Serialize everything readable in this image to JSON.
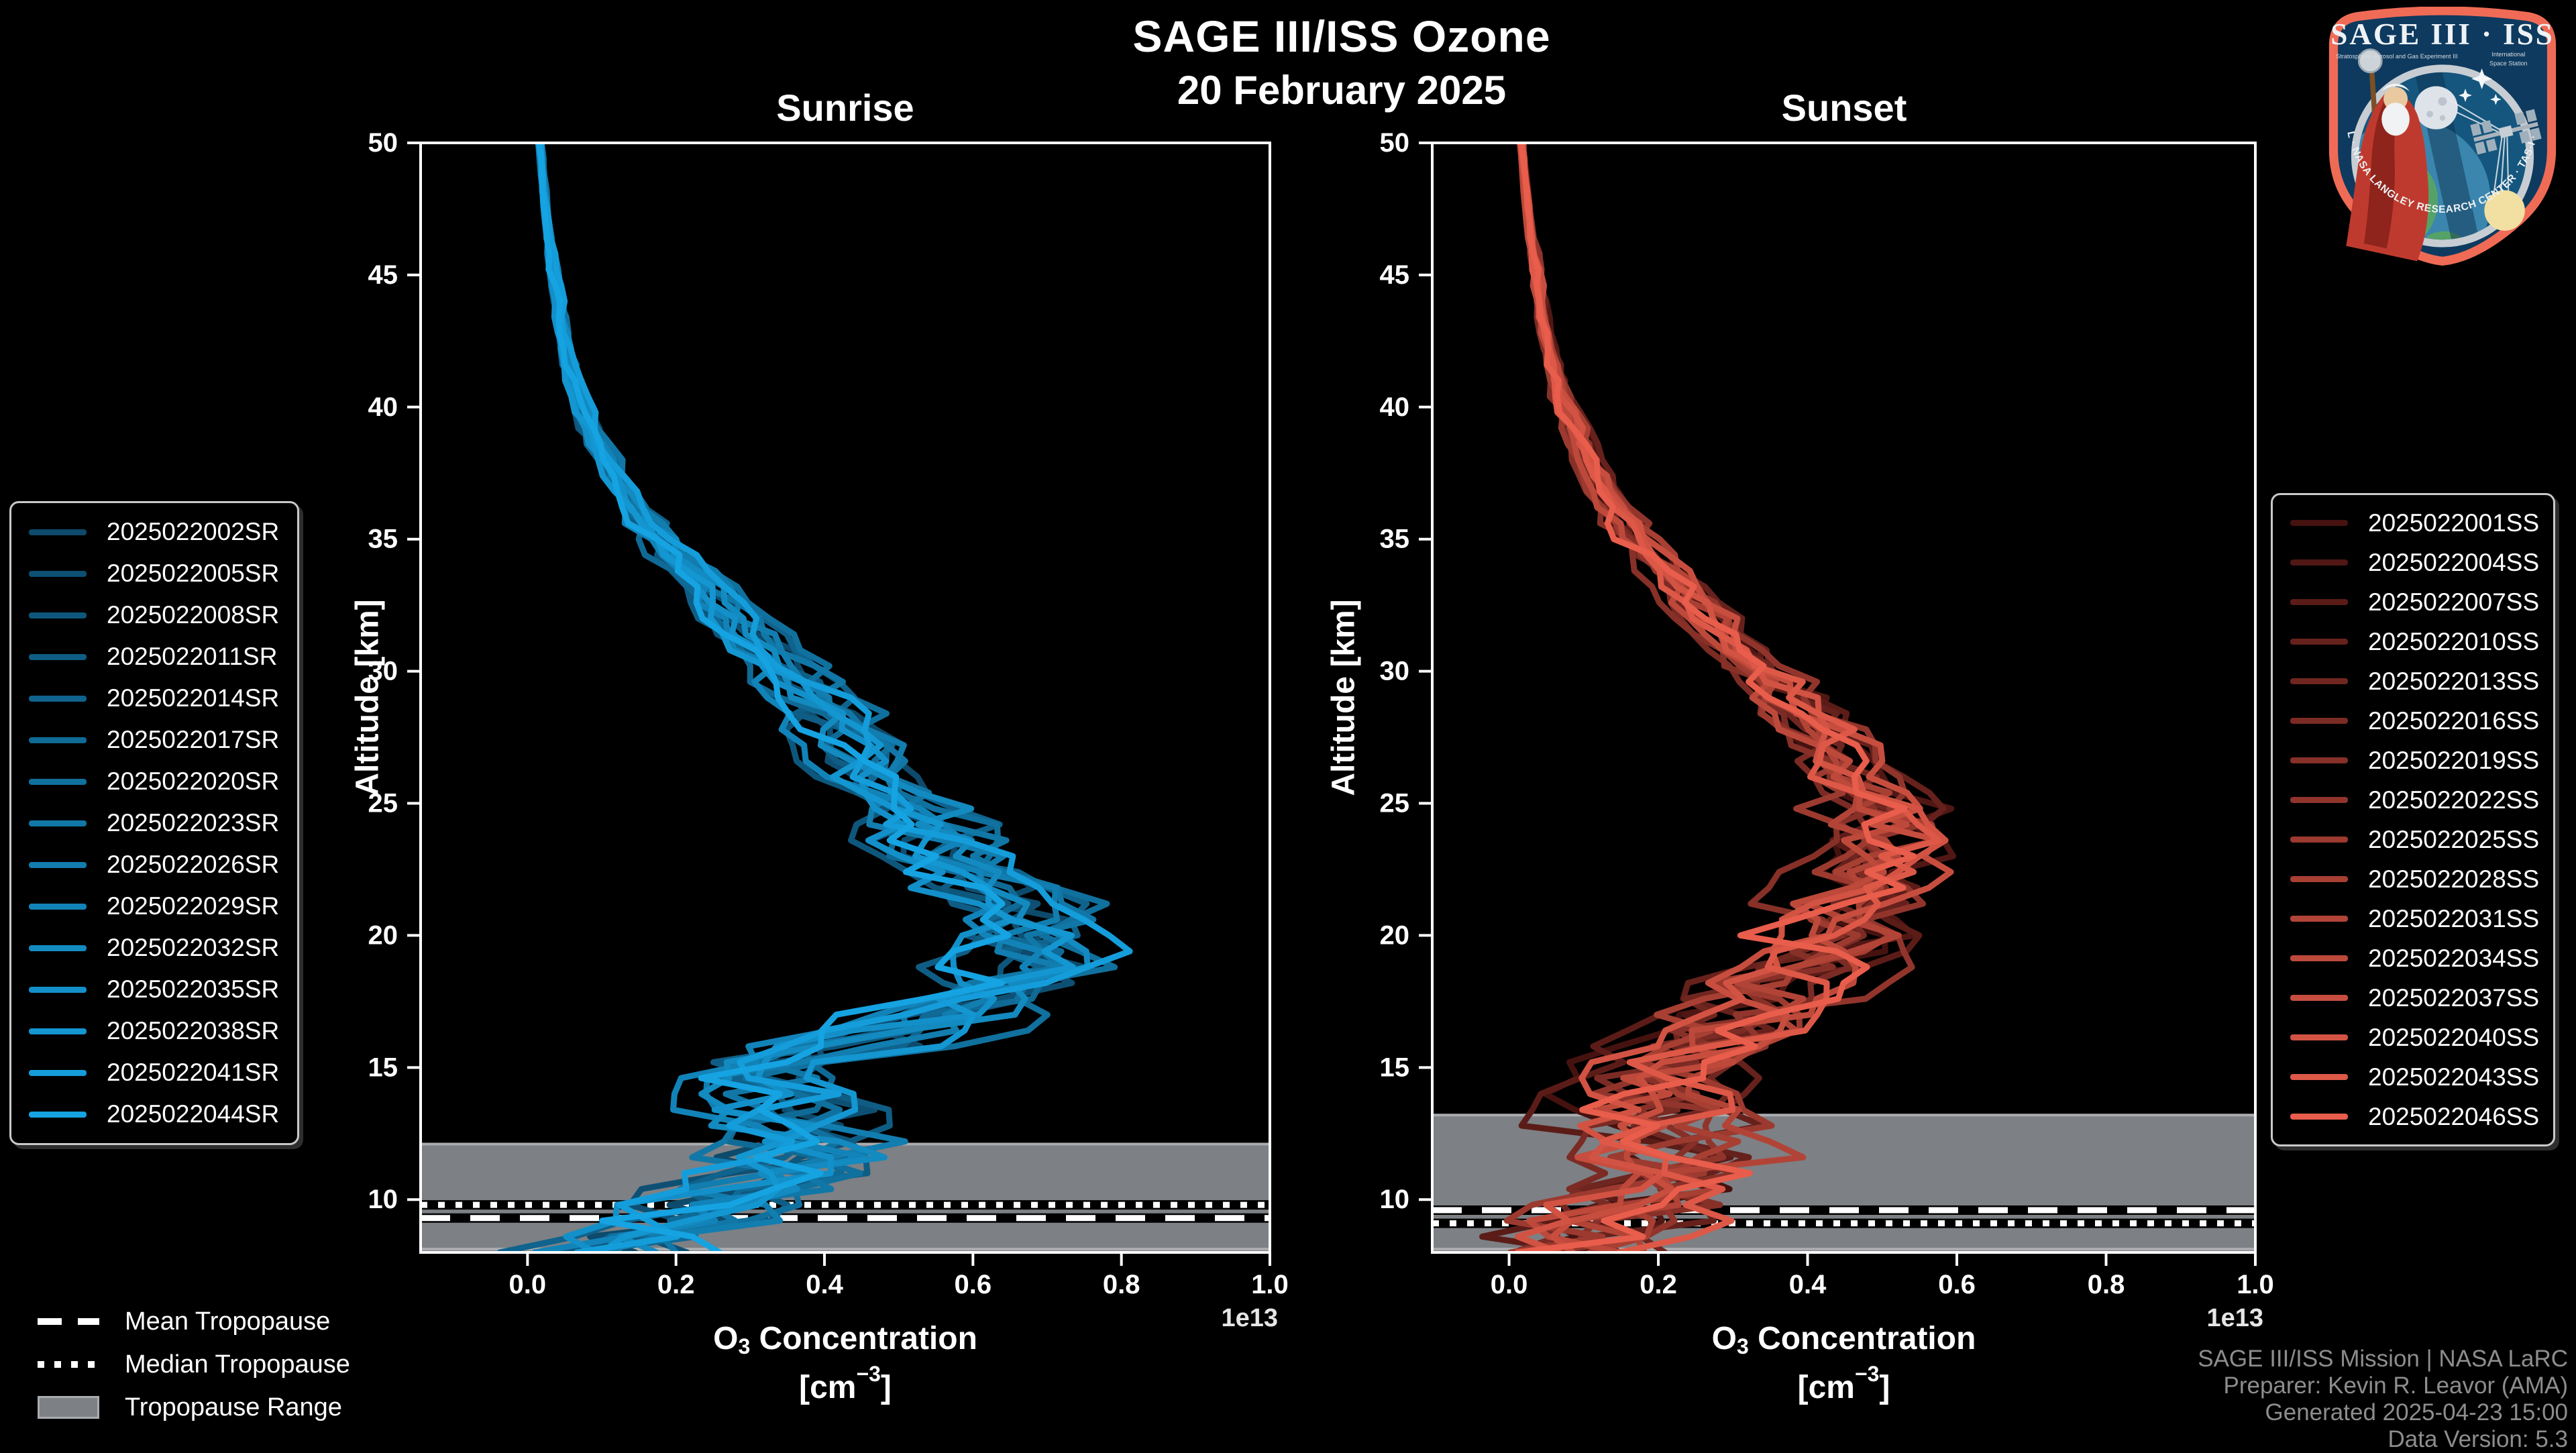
{
  "header": {
    "title": "SAGE III/ISS Ozone",
    "date": "20 February 2025"
  },
  "chart_data": {
    "type": "line",
    "title": "SAGE III/ISS Ozone",
    "subtitle_date": "20 February 2025",
    "x_axis": {
      "label_parts": {
        "pre": "O",
        "sub": "3",
        "rest": " Concentration",
        "unit_pre": "[cm",
        "unit_sup": "−3",
        "unit_post": "]"
      },
      "multiplier": "1e13",
      "tick_labels": [
        "0.0",
        "0.2",
        "0.4",
        "0.6",
        "0.8",
        "1.0"
      ]
    },
    "y_axis": {
      "label": "Altitude [km]",
      "ticks": [
        10,
        15,
        20,
        25,
        30,
        35,
        40,
        45,
        50
      ],
      "range": [
        8,
        50
      ]
    },
    "panels": [
      {
        "id": "sunrise",
        "title": "Sunrise",
        "event_type": "SR",
        "color_start": "#0d4a6b",
        "color_end": "#15a3e2",
        "x_range": [
          -0.144,
          1.0
        ],
        "series": [
          "2025022002SR",
          "2025022005SR",
          "2025022008SR",
          "2025022011SR",
          "2025022014SR",
          "2025022017SR",
          "2025022020SR",
          "2025022023SR",
          "2025022026SR",
          "2025022029SR",
          "2025022032SR",
          "2025022035SR",
          "2025022038SR",
          "2025022041SR",
          "2025022044SR"
        ],
        "tropopause": {
          "mean_km": 9.3,
          "median_km": 9.8,
          "range_top_km": 12.1,
          "range_bottom_km": 8.0
        },
        "mean_profile": {
          "altitude_km": [
            8,
            9,
            10,
            11,
            12,
            13,
            14,
            15,
            16,
            17,
            18,
            19,
            20,
            21,
            22,
            23,
            24,
            25,
            26,
            27,
            28,
            29,
            30,
            31,
            32,
            33,
            34,
            35,
            36,
            37,
            38,
            39,
            40,
            41,
            42,
            43,
            44,
            45,
            46,
            47,
            48,
            49,
            50
          ],
          "o3_concentration_1e13": [
            0.12,
            0.17,
            0.26,
            0.34,
            0.41,
            0.38,
            0.33,
            0.35,
            0.45,
            0.55,
            0.63,
            0.68,
            0.68,
            0.66,
            0.62,
            0.57,
            0.53,
            0.5,
            0.47,
            0.45,
            0.42,
            0.39,
            0.36,
            0.32,
            0.28,
            0.25,
            0.21,
            0.18,
            0.15,
            0.13,
            0.11,
            0.09,
            0.075,
            0.065,
            0.055,
            0.048,
            0.042,
            0.036,
            0.031,
            0.027,
            0.023,
            0.02,
            0.017
          ]
        }
      },
      {
        "id": "sunset",
        "title": "Sunset",
        "event_type": "SS",
        "color_start": "#451210",
        "color_end": "#e85d4b",
        "x_range": [
          -0.103,
          1.0
        ],
        "series": [
          "2025022001SS",
          "2025022004SS",
          "2025022007SS",
          "2025022010SS",
          "2025022013SS",
          "2025022016SS",
          "2025022019SS",
          "2025022022SS",
          "2025022025SS",
          "2025022028SS",
          "2025022031SS",
          "2025022034SS",
          "2025022037SS",
          "2025022040SS",
          "2025022043SS",
          "2025022046SS"
        ],
        "tropopause": {
          "mean_km": 9.6,
          "median_km": 9.1,
          "range_top_km": 13.2,
          "range_bottom_km": 8.0
        },
        "mean_profile": {
          "altitude_km": [
            8,
            9,
            10,
            11,
            12,
            13,
            14,
            15,
            16,
            17,
            18,
            19,
            20,
            21,
            22,
            23,
            24,
            25,
            26,
            27,
            28,
            29,
            30,
            31,
            32,
            33,
            34,
            35,
            36,
            37,
            38,
            39,
            40,
            41,
            42,
            43,
            44,
            45,
            46,
            47,
            48,
            49,
            50
          ],
          "o3_concentration_1e13": [
            0.1,
            0.14,
            0.18,
            0.2,
            0.21,
            0.2,
            0.2,
            0.22,
            0.25,
            0.29,
            0.34,
            0.39,
            0.43,
            0.46,
            0.48,
            0.49,
            0.5,
            0.48,
            0.46,
            0.44,
            0.41,
            0.38,
            0.34,
            0.3,
            0.27,
            0.23,
            0.2,
            0.17,
            0.145,
            0.125,
            0.105,
            0.09,
            0.075,
            0.065,
            0.055,
            0.048,
            0.042,
            0.036,
            0.031,
            0.027,
            0.023,
            0.02,
            0.017
          ]
        }
      }
    ]
  },
  "tropopause_legend": {
    "mean_label": "Mean Tropopause",
    "median_label": "Median Tropopause",
    "range_label": "Tropopause Range"
  },
  "footer": {
    "lines": [
      "SAGE III/ISS Mission | NASA LaRC",
      "Preparer: Kevin R. Leavor (AMA)",
      "Generated 2025-04-23 15:00",
      "Data Version: 5.3"
    ]
  },
  "logo": {
    "title": "SAGE III · ISS",
    "subtitle_left": "Stratospheric Aerosol and Gas Experiment III",
    "subtitle_right_line1": "International",
    "subtitle_right_line2": "Space Station",
    "arc_text": "BALL · NASA LANGLEY RESEARCH CENTER · TAS-I · ESA"
  },
  "colors": {
    "background": "#000000",
    "text": "#ffffff",
    "footer_text": "#8d8d8d",
    "axis": "#ffffff",
    "tropopause_band": "#7d8084",
    "tropopause_band_edge": "#aaacaf",
    "logo_border": "#ef6b55",
    "logo_field": "#0e3a5f"
  }
}
